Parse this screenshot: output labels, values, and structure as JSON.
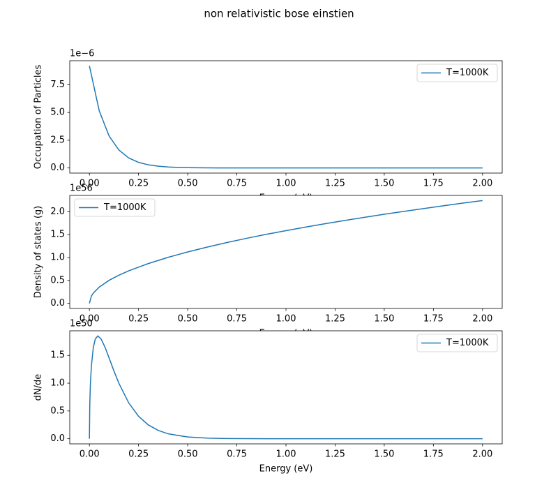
{
  "title": "non relativistic bose einstien",
  "chart_data": [
    {
      "type": "line",
      "xlabel": "Energy (eV)",
      "ylabel": "Occupation of Particles",
      "y_offset_label": "1e−6",
      "x": [
        0,
        0.05,
        0.1,
        0.15,
        0.2,
        0.25,
        0.3,
        0.35,
        0.4,
        0.45,
        0.5,
        0.55,
        0.6,
        0.65,
        0.7,
        0.75,
        0.8,
        0.85,
        0.9,
        0.95,
        1.0,
        1.1,
        1.2,
        1.3,
        1.4,
        1.5,
        1.6,
        1.7,
        1.8,
        1.9,
        2.0
      ],
      "series": [
        {
          "name": "T=1000K",
          "color": "#1f77b4",
          "values": [
            9.2,
            5.15,
            2.883,
            1.614,
            0.904,
            0.506,
            0.283,
            0.159,
            0.089,
            0.05,
            0.028,
            0.0156,
            0.0087,
            0.0049,
            0.0027,
            0.0015,
            0.0009,
            0.0005,
            0.0003,
            0.0002,
            0.0001,
            0,
            0,
            0,
            0,
            0,
            0,
            0,
            0,
            0,
            0
          ]
        }
      ],
      "legend": "upper right",
      "xlim": [
        -0.1,
        2.1
      ],
      "xticks": [
        {
          "value": 0,
          "label": "0.00"
        },
        {
          "value": 0.25,
          "label": "0.25"
        },
        {
          "value": 0.5,
          "label": "0.50"
        },
        {
          "value": 0.75,
          "label": "0.75"
        },
        {
          "value": 1,
          "label": "1.00"
        },
        {
          "value": 1.25,
          "label": "1.25"
        },
        {
          "value": 1.5,
          "label": "1.50"
        },
        {
          "value": 1.75,
          "label": "1.75"
        },
        {
          "value": 2,
          "label": "2.00"
        }
      ],
      "ylim": [
        -0.46,
        9.66
      ],
      "yticks": [
        {
          "value": 0,
          "label": "0.0"
        },
        2.5,
        {
          "value": 5,
          "label": "5.0"
        },
        7.5
      ]
    },
    {
      "type": "line",
      "xlabel": "Energy (eV)",
      "ylabel": "Density of states (g)",
      "y_offset_label": "1e56",
      "x": [
        0,
        0.01,
        0.02,
        0.05,
        0.1,
        0.15,
        0.2,
        0.3,
        0.4,
        0.5,
        0.6,
        0.7,
        0.8,
        0.9,
        1.0,
        1.1,
        1.2,
        1.3,
        1.4,
        1.5,
        1.6,
        1.7,
        1.8,
        1.9,
        2.0
      ],
      "series": [
        {
          "name": "T=1000K",
          "color": "#1f77b4",
          "values": [
            0,
            0.159,
            0.224,
            0.355,
            0.502,
            0.615,
            0.71,
            0.869,
            1.004,
            1.122,
            1.229,
            1.328,
            1.42,
            1.506,
            1.587,
            1.665,
            1.739,
            1.81,
            1.878,
            1.944,
            2.007,
            2.069,
            2.129,
            2.188,
            2.244
          ]
        }
      ],
      "legend": "upper left",
      "xlim": [
        -0.1,
        2.1
      ],
      "xticks": [
        {
          "value": 0,
          "label": "0.00"
        },
        {
          "value": 0.25,
          "label": "0.25"
        },
        {
          "value": 0.5,
          "label": "0.50"
        },
        {
          "value": 0.75,
          "label": "0.75"
        },
        {
          "value": 1,
          "label": "1.00"
        },
        {
          "value": 1.25,
          "label": "1.25"
        },
        {
          "value": 1.5,
          "label": "1.50"
        },
        {
          "value": 1.75,
          "label": "1.75"
        },
        {
          "value": 2,
          "label": "2.00"
        }
      ],
      "ylim": [
        -0.112,
        2.356
      ],
      "yticks": [
        {
          "value": 0,
          "label": "0.0"
        },
        0.5,
        {
          "value": 1,
          "label": "1.0"
        },
        1.5,
        {
          "value": 2,
          "label": "2.0"
        }
      ]
    },
    {
      "type": "line",
      "xlabel": "Energy (eV)",
      "ylabel": "dN/de",
      "y_offset_label": "1e50",
      "x": [
        0,
        0.002,
        0.005,
        0.01,
        0.02,
        0.03,
        0.043,
        0.06,
        0.08,
        0.1,
        0.125,
        0.15,
        0.2,
        0.25,
        0.3,
        0.35,
        0.4,
        0.5,
        0.6,
        0.7,
        0.8,
        1.0,
        1.25,
        1.5,
        1.75,
        2.0
      ],
      "series": [
        {
          "name": "T=1000K",
          "color": "#1f77b4",
          "values": [
            0,
            0.642,
            0.98,
            1.308,
            1.647,
            1.796,
            1.85,
            1.793,
            1.642,
            1.455,
            1.218,
            0.998,
            0.645,
            0.404,
            0.247,
            0.15,
            0.089,
            0.031,
            0.011,
            0.0036,
            0.0012,
            0.0001,
            0,
            0,
            0,
            0
          ]
        }
      ],
      "legend": "upper right",
      "xlim": [
        -0.1,
        2.1
      ],
      "xticks": [
        {
          "value": 0,
          "label": "0.00"
        },
        {
          "value": 0.25,
          "label": "0.25"
        },
        {
          "value": 0.5,
          "label": "0.50"
        },
        {
          "value": 0.75,
          "label": "0.75"
        },
        {
          "value": 1,
          "label": "1.00"
        },
        {
          "value": 1.25,
          "label": "1.25"
        },
        {
          "value": 1.5,
          "label": "1.50"
        },
        {
          "value": 1.75,
          "label": "1.75"
        },
        {
          "value": 2,
          "label": "2.00"
        }
      ],
      "ylim": [
        -0.0925,
        1.9425
      ],
      "yticks": [
        {
          "value": 0,
          "label": "0.0"
        },
        0.5,
        {
          "value": 1,
          "label": "1.0"
        },
        1.5
      ]
    }
  ]
}
